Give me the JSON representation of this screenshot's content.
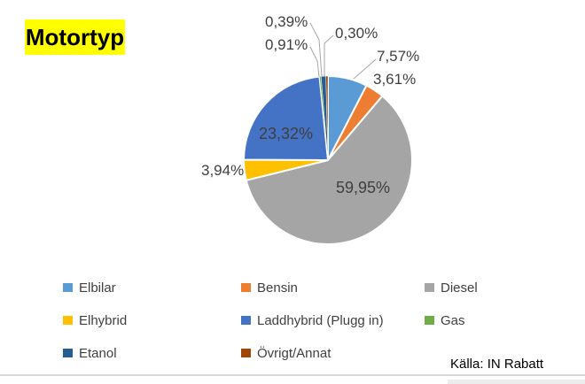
{
  "title": {
    "label": "Motortyp",
    "highlight_color": "#FFFF00",
    "text_color": "#000000"
  },
  "source_caption": {
    "label": "Källa: IN Rabatt"
  },
  "chart_data": {
    "type": "pie",
    "title": "Motortyp",
    "value_unit": "%",
    "value_format": "Swedish decimal comma",
    "start_angle_deg": 0,
    "direction": "clockwise",
    "legend_position": "bottom",
    "label_color": "#3F3F3F",
    "slice_border_color": "#FFFFFF",
    "slices": [
      {
        "label": "Elbilar",
        "value": 7.57,
        "display": "7,57%",
        "color": "#5B9BD5"
      },
      {
        "label": "Bensin",
        "value": 3.61,
        "display": "3,61%",
        "color": "#ED7D31"
      },
      {
        "label": "Diesel",
        "value": 59.95,
        "display": "59,95%",
        "color": "#A5A5A5"
      },
      {
        "label": "Elhybrid",
        "value": 3.94,
        "display": "3,94%",
        "color": "#FFC000"
      },
      {
        "label": "Laddhybrid (Plugg in)",
        "value": 23.32,
        "display": "23,32%",
        "color": "#4472C4"
      },
      {
        "label": "Gas",
        "value": 0.3,
        "display": "0,30%",
        "color": "#70AD47"
      },
      {
        "label": "Etanol",
        "value": 0.91,
        "display": "0,91%",
        "color": "#255E91"
      },
      {
        "label": "Övrigt/Annat",
        "value": 0.39,
        "display": "0,39%",
        "color": "#9E480E"
      }
    ]
  }
}
